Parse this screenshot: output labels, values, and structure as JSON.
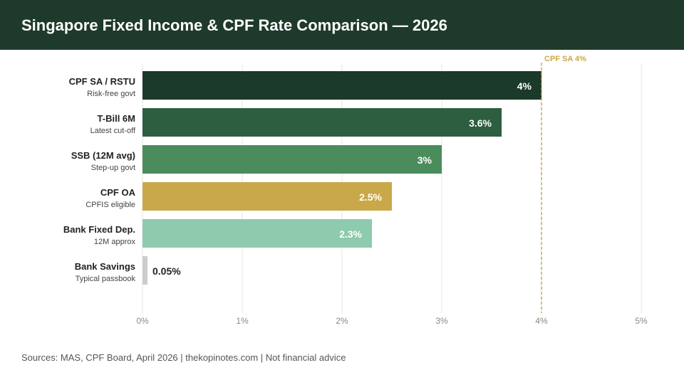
{
  "header": {
    "title": "Singapore Fixed Income & CPF Rate Comparison — 2026"
  },
  "chart_data": {
    "type": "bar",
    "orientation": "horizontal",
    "title": "Singapore Fixed Income & CPF Rate Comparison — 2026",
    "categories": [
      "CPF SA / RSTU",
      "T-Bill 6M",
      "SSB (12M avg)",
      "CPF OA",
      "Bank Fixed Dep.",
      "Bank Savings"
    ],
    "sublabels": [
      "Risk-free govt",
      "Latest cut-off",
      "Step-up govt",
      "CPFIS eligible",
      "12M approx",
      "Typical passbook"
    ],
    "values": [
      4,
      3.6,
      3,
      2.5,
      2.3,
      0.05
    ],
    "value_labels": [
      "4%",
      "3.6%",
      "3%",
      "2.5%",
      "2.3%",
      "0.05%"
    ],
    "colors": [
      "#1b3a2a",
      "#2d5e40",
      "#4a8c5c",
      "#c9a84a",
      "#8ecaae",
      "#cccccc"
    ],
    "xlim": [
      0,
      5
    ],
    "xticks": [
      "0%",
      "1%",
      "2%",
      "3%",
      "4%",
      "5%"
    ],
    "grid": true,
    "reference_line": {
      "value": 4,
      "label": "CPF SA 4%",
      "color": "#c9a84a"
    }
  },
  "footer": {
    "sources": "Sources: MAS, CPF Board, April 2026 | thekopinotes.com | Not financial advice"
  }
}
